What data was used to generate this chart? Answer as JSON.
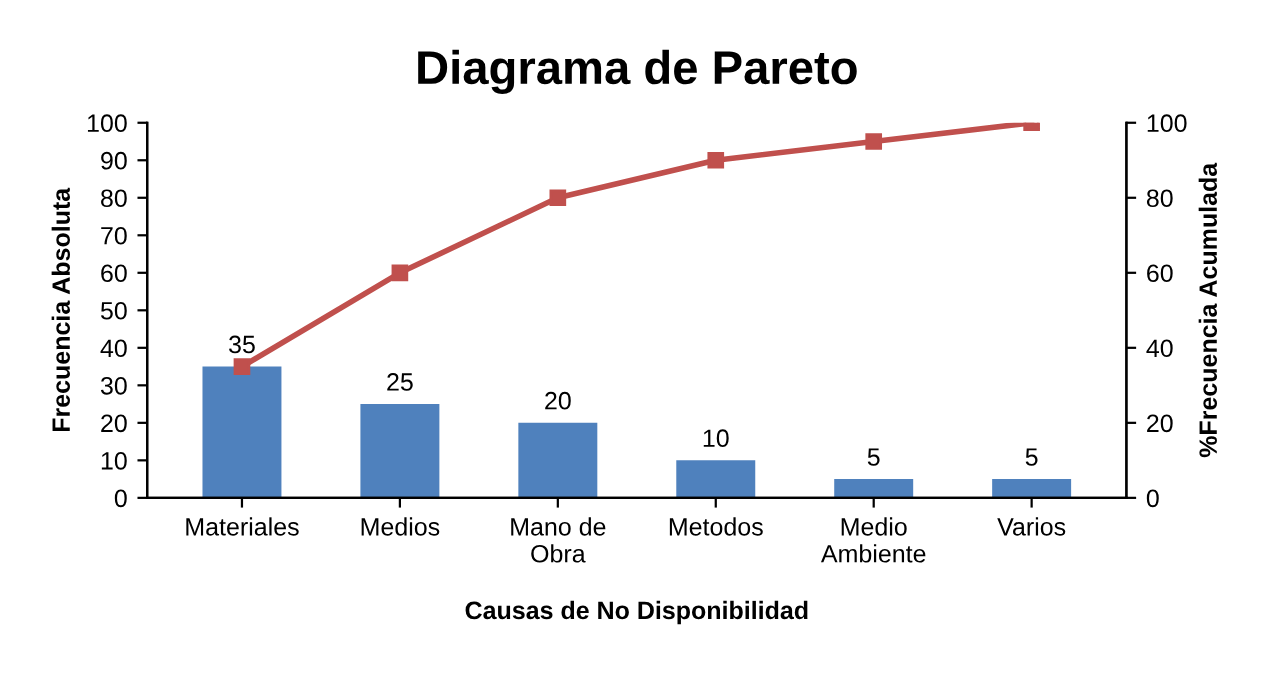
{
  "chart_data": {
    "type": "bar",
    "title": "Diagrama de Pareto",
    "xlabel": "Causas de No Disponibilidad",
    "ylabel": "Frecuencia Absoluta",
    "y2label": "%Frecuencia Acumulada",
    "categories": [
      "Materiales",
      "Medios",
      "Mano de\nObra",
      "Metodos",
      "Medio\nAmbiente",
      "Varios"
    ],
    "series": [
      {
        "color": "#4f81bd",
        "values": [
          35,
          25,
          20,
          10,
          5,
          5
        ],
        "value_labels": [
          "35",
          "25",
          "20",
          "10",
          "5",
          "5"
        ]
      },
      {
        "type": "line",
        "axis": "y2",
        "color": "#c0504d",
        "marker": "square",
        "line_style": "solid",
        "values": [
          35,
          60,
          80,
          90,
          95,
          100
        ]
      }
    ],
    "ylim": [
      0,
      100
    ],
    "yticks": [
      0,
      10,
      20,
      30,
      40,
      50,
      60,
      70,
      80,
      90,
      100
    ],
    "y2lim": [
      0,
      100
    ],
    "y2ticks": [
      0,
      20,
      40,
      60,
      80,
      100
    ],
    "grid": false
  }
}
